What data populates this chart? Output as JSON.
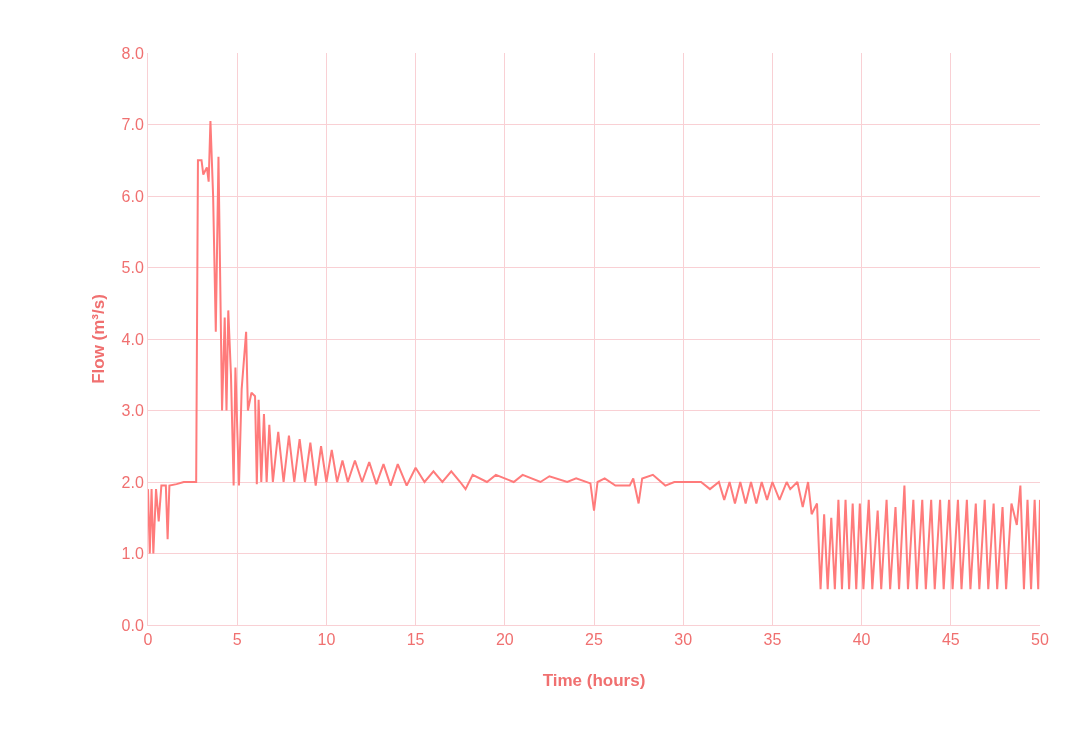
{
  "chart_data": {
    "type": "line",
    "xlabel": "Time (hours)",
    "ylabel": "Flow (m³/s)",
    "xlim": [
      0,
      50
    ],
    "xticks": [
      0,
      5,
      10,
      15,
      20,
      25,
      30,
      35,
      40,
      45,
      50
    ],
    "ylim": [
      0,
      8
    ],
    "yticks": [
      {
        "value": 0,
        "label": "0.0"
      },
      {
        "value": 1,
        "label": "1.0"
      },
      {
        "value": 2,
        "label": "2.0"
      },
      {
        "value": 3,
        "label": "3.0"
      },
      {
        "value": 4,
        "label": "4.0"
      },
      {
        "value": 5,
        "label": "5.0"
      },
      {
        "value": 6,
        "label": "6.0"
      },
      {
        "value": 7,
        "label": "7.0"
      },
      {
        "value": 8,
        "label": "8.0"
      }
    ],
    "grid": true,
    "marker": "none",
    "line_style": "solid",
    "x": [
      0,
      0.1,
      0.2,
      0.3,
      0.45,
      0.6,
      0.75,
      1.0,
      1.1,
      1.2,
      1.6,
      2.0,
      2.7,
      2.8,
      3.0,
      3.1,
      3.3,
      3.4,
      3.5,
      3.65,
      3.8,
      3.95,
      4.15,
      4.3,
      4.4,
      4.5,
      4.65,
      4.8,
      4.9,
      5.1,
      5.25,
      5.5,
      5.6,
      5.8,
      6.0,
      6.1,
      6.2,
      6.35,
      6.5,
      6.65,
      6.8,
      7.0,
      7.3,
      7.6,
      7.9,
      8.2,
      8.5,
      8.8,
      9.1,
      9.4,
      9.7,
      10.0,
      10.3,
      10.6,
      10.9,
      11.2,
      11.6,
      12.0,
      12.4,
      12.8,
      13.2,
      13.6,
      14.0,
      14.5,
      15.0,
      15.5,
      16.0,
      16.5,
      17.0,
      17.5,
      17.8,
      18.2,
      19.0,
      19.5,
      20.5,
      21.0,
      22.0,
      22.5,
      23.5,
      24.0,
      24.8,
      25.0,
      25.2,
      25.6,
      26.2,
      27.0,
      27.2,
      27.5,
      27.7,
      28.3,
      29.0,
      29.5,
      30.0,
      31.0,
      31.5,
      32.0,
      32.3,
      32.6,
      32.9,
      33.2,
      33.5,
      33.8,
      34.1,
      34.4,
      34.7,
      35.0,
      35.4,
      35.8,
      36.0,
      36.4,
      36.7,
      37.0,
      37.2,
      37.5,
      37.7,
      37.9,
      38.1,
      38.3,
      38.5,
      38.7,
      38.9,
      39.1,
      39.3,
      39.5,
      39.7,
      39.9,
      40.1,
      40.4,
      40.6,
      40.9,
      41.1,
      41.4,
      41.6,
      41.9,
      42.1,
      42.4,
      42.6,
      42.9,
      43.1,
      43.4,
      43.6,
      43.9,
      44.1,
      44.4,
      44.6,
      44.9,
      45.1,
      45.4,
      45.6,
      45.9,
      46.1,
      46.4,
      46.6,
      46.9,
      47.1,
      47.4,
      47.6,
      47.9,
      48.1,
      48.4,
      48.7,
      48.9,
      49.1,
      49.3,
      49.5,
      49.7,
      49.9,
      50.0
    ],
    "series": [
      {
        "color": "#ff7b7b",
        "values": [
          1.9,
          1.0,
          1.9,
          1.0,
          1.9,
          1.45,
          1.95,
          1.95,
          1.2,
          1.95,
          1.97,
          2.0,
          2.0,
          6.5,
          6.5,
          6.3,
          6.4,
          6.2,
          7.05,
          6.0,
          4.1,
          6.55,
          3.0,
          4.3,
          3.0,
          4.4,
          3.5,
          1.95,
          3.6,
          1.95,
          3.3,
          4.1,
          3.0,
          3.25,
          3.2,
          1.97,
          3.15,
          2.0,
          2.95,
          2.0,
          2.8,
          2.0,
          2.7,
          2.0,
          2.65,
          2.0,
          2.6,
          2.0,
          2.55,
          1.95,
          2.5,
          2.0,
          2.45,
          2.0,
          2.3,
          2.0,
          2.3,
          2.0,
          2.28,
          1.97,
          2.25,
          1.95,
          2.25,
          1.95,
          2.2,
          2.0,
          2.15,
          2.0,
          2.15,
          2.0,
          1.9,
          2.1,
          2.0,
          2.1,
          2.0,
          2.1,
          2.0,
          2.08,
          2.0,
          2.05,
          1.98,
          1.6,
          2.0,
          2.05,
          1.95,
          1.95,
          2.05,
          1.7,
          2.05,
          2.1,
          1.95,
          2.0,
          2.0,
          2.0,
          1.9,
          2.0,
          1.75,
          2.0,
          1.7,
          2.0,
          1.7,
          2.0,
          1.7,
          2.0,
          1.75,
          2.0,
          1.75,
          2.0,
          1.9,
          2.0,
          1.65,
          2.0,
          1.55,
          1.7,
          0.5,
          1.55,
          0.5,
          1.5,
          0.5,
          1.75,
          0.5,
          1.75,
          0.5,
          1.7,
          0.5,
          1.7,
          0.5,
          1.75,
          0.5,
          1.6,
          0.5,
          1.75,
          0.5,
          1.65,
          0.5,
          1.95,
          0.5,
          1.75,
          0.5,
          1.75,
          0.5,
          1.75,
          0.5,
          1.75,
          0.5,
          1.75,
          0.5,
          1.75,
          0.5,
          1.75,
          0.5,
          1.7,
          0.5,
          1.75,
          0.5,
          1.7,
          0.5,
          1.65,
          0.5,
          1.7,
          1.4,
          1.95,
          0.5,
          1.75,
          0.5,
          1.75,
          0.5,
          1.75
        ]
      }
    ]
  }
}
